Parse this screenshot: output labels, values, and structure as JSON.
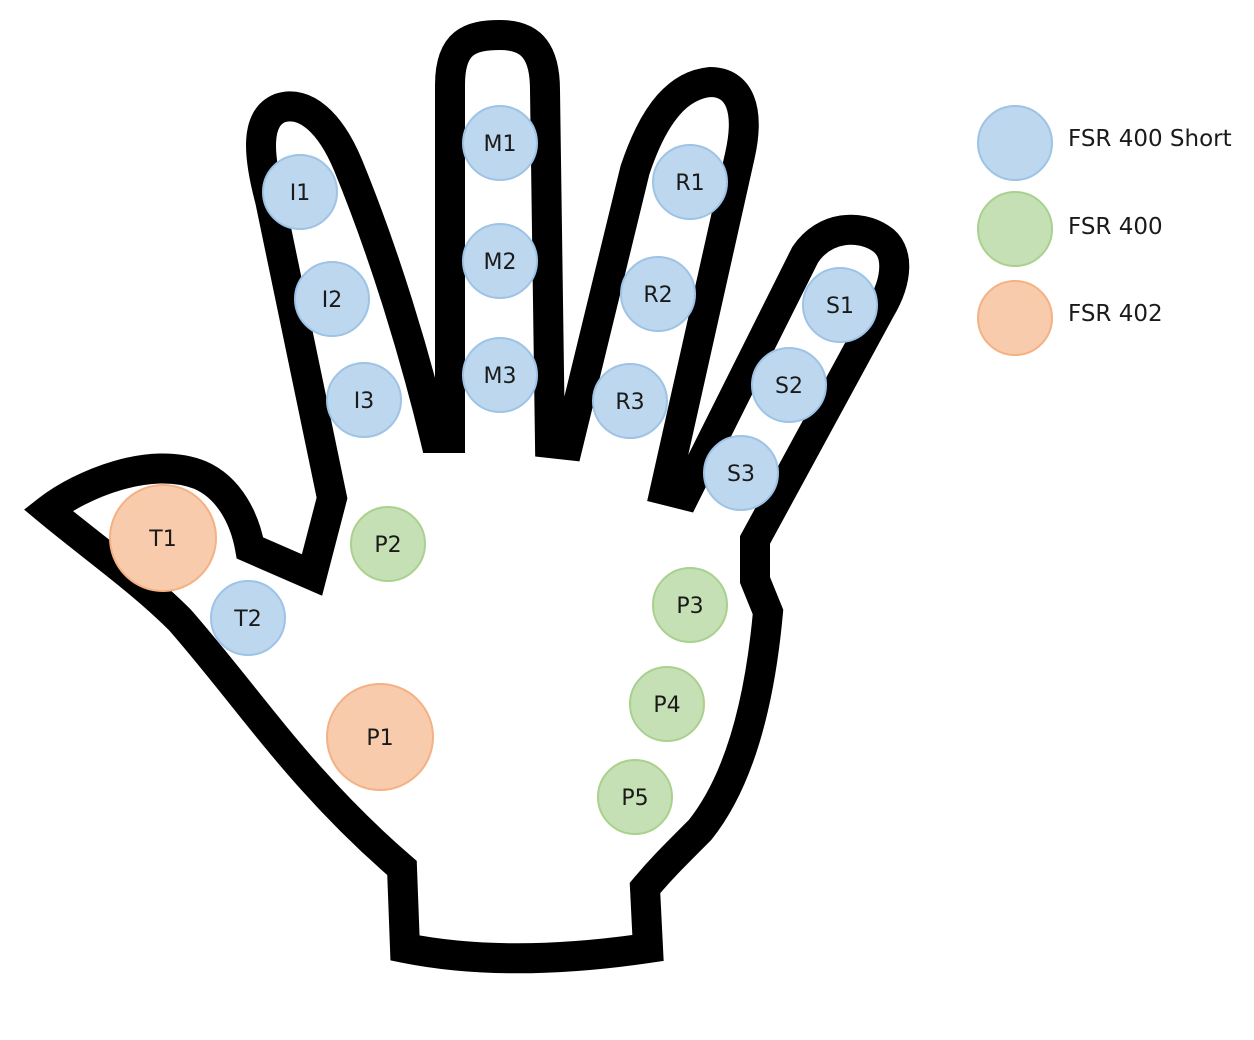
{
  "colors": {
    "outline": "#000000",
    "fsr_400_short": "#bdd7ee",
    "fsr_400_short_edge": "#9dc3e6",
    "fsr_400": "#c5e0b4",
    "fsr_400_edge": "#a9d18e",
    "fsr_402": "#f8cbad",
    "fsr_402_edge": "#f4b183",
    "label": "#1a1a1a"
  },
  "legend": [
    {
      "label": "FSR 400 Short",
      "color_key": "fsr_400_short"
    },
    {
      "label": "FSR 400",
      "color_key": "fsr_400"
    },
    {
      "label": "FSR 402",
      "color_key": "fsr_402"
    }
  ],
  "sensors": [
    {
      "label": "I1",
      "type": "fsr_400_short"
    },
    {
      "label": "I2",
      "type": "fsr_400_short"
    },
    {
      "label": "I3",
      "type": "fsr_400_short"
    },
    {
      "label": "M1",
      "type": "fsr_400_short"
    },
    {
      "label": "M2",
      "type": "fsr_400_short"
    },
    {
      "label": "M3",
      "type": "fsr_400_short"
    },
    {
      "label": "R1",
      "type": "fsr_400_short"
    },
    {
      "label": "R2",
      "type": "fsr_400_short"
    },
    {
      "label": "R3",
      "type": "fsr_400_short"
    },
    {
      "label": "S1",
      "type": "fsr_400_short"
    },
    {
      "label": "S2",
      "type": "fsr_400_short"
    },
    {
      "label": "S3",
      "type": "fsr_400_short"
    },
    {
      "label": "T1",
      "type": "fsr_402"
    },
    {
      "label": "T2",
      "type": "fsr_400_short"
    },
    {
      "label": "P1",
      "type": "fsr_402"
    },
    {
      "label": "P2",
      "type": "fsr_400"
    },
    {
      "label": "P3",
      "type": "fsr_400"
    },
    {
      "label": "P4",
      "type": "fsr_400"
    },
    {
      "label": "P5",
      "type": "fsr_400"
    }
  ]
}
